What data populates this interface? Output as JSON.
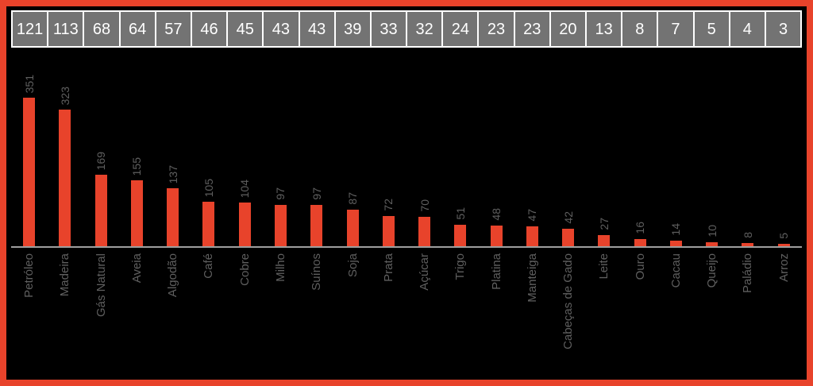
{
  "chart_data": {
    "type": "bar",
    "categories": [
      "Petróleo",
      "Madeira",
      "Gás Natural",
      "Aveia",
      "Algodão",
      "Café",
      "Cobre",
      "Milho",
      "Suínos",
      "Soja",
      "Prata",
      "Açúcar",
      "Trigo",
      "Platina",
      "Manteiga",
      "Cabeças de Gado",
      "Leite",
      "Ouro",
      "Cacau",
      "Queijo",
      "Paládio",
      "Arroz"
    ],
    "values": [
      351,
      323,
      169,
      155,
      137,
      105,
      104,
      97,
      97,
      87,
      72,
      70,
      51,
      48,
      47,
      42,
      27,
      16,
      14,
      10,
      8,
      5
    ],
    "header_values": [
      121,
      113,
      68,
      64,
      57,
      46,
      45,
      43,
      43,
      39,
      33,
      32,
      24,
      23,
      23,
      20,
      13,
      8,
      7,
      5,
      4,
      3
    ],
    "title": "",
    "xlabel": "",
    "ylabel": "",
    "ylim": [
      0,
      360
    ],
    "grid": false,
    "legend_position": "none",
    "bar_color": "#E8432B",
    "value_label_color": "#5F5F5F",
    "category_label_color": "#5F5F5F"
  },
  "colors": {
    "background": "#000000",
    "frame_border": "#E8432B",
    "header_strip_bg": "#FFFFFF",
    "header_cell_bg": "#737373",
    "header_cell_text": "#FFFFFF",
    "axis_line": "#9E9E9E"
  }
}
